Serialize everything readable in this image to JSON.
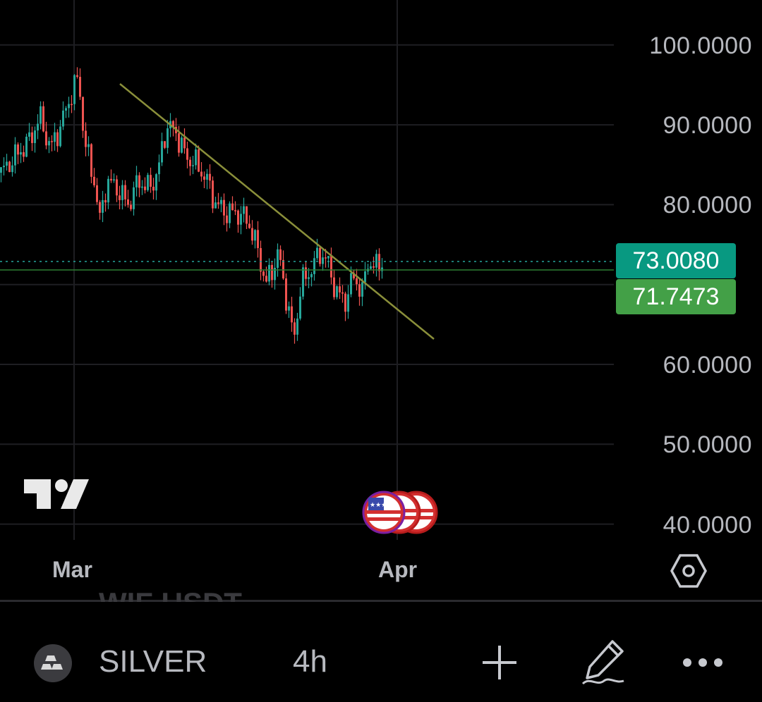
{
  "chart_data": {
    "type": "candlestick",
    "symbol": "SILVER",
    "interval": "4h",
    "y_ticks": [
      "100.0000",
      "90.0000",
      "80.0000",
      "60.0000",
      "50.0000",
      "40.0000"
    ],
    "y_tick_values": [
      100,
      90,
      80,
      60,
      50,
      40
    ],
    "x_ticks": [
      "Mar",
      "Apr"
    ],
    "last_price": "73.0080",
    "secondary_price": "71.7473",
    "last_price_value": 73.008,
    "secondary_price_value": 71.7473,
    "colors": {
      "up": "#26a69a",
      "down": "#ef5350",
      "trendline": "#8a8f3a",
      "last_tag": "#089981",
      "secondary_tag": "#43a047"
    }
  },
  "bottom_bar": {
    "symbol": "SILVER",
    "interval": "4h",
    "ghost_text": "WIF USDT",
    "icons": [
      "silver-bars-icon",
      "plus-icon",
      "pencil-icon",
      "more-icon"
    ]
  }
}
